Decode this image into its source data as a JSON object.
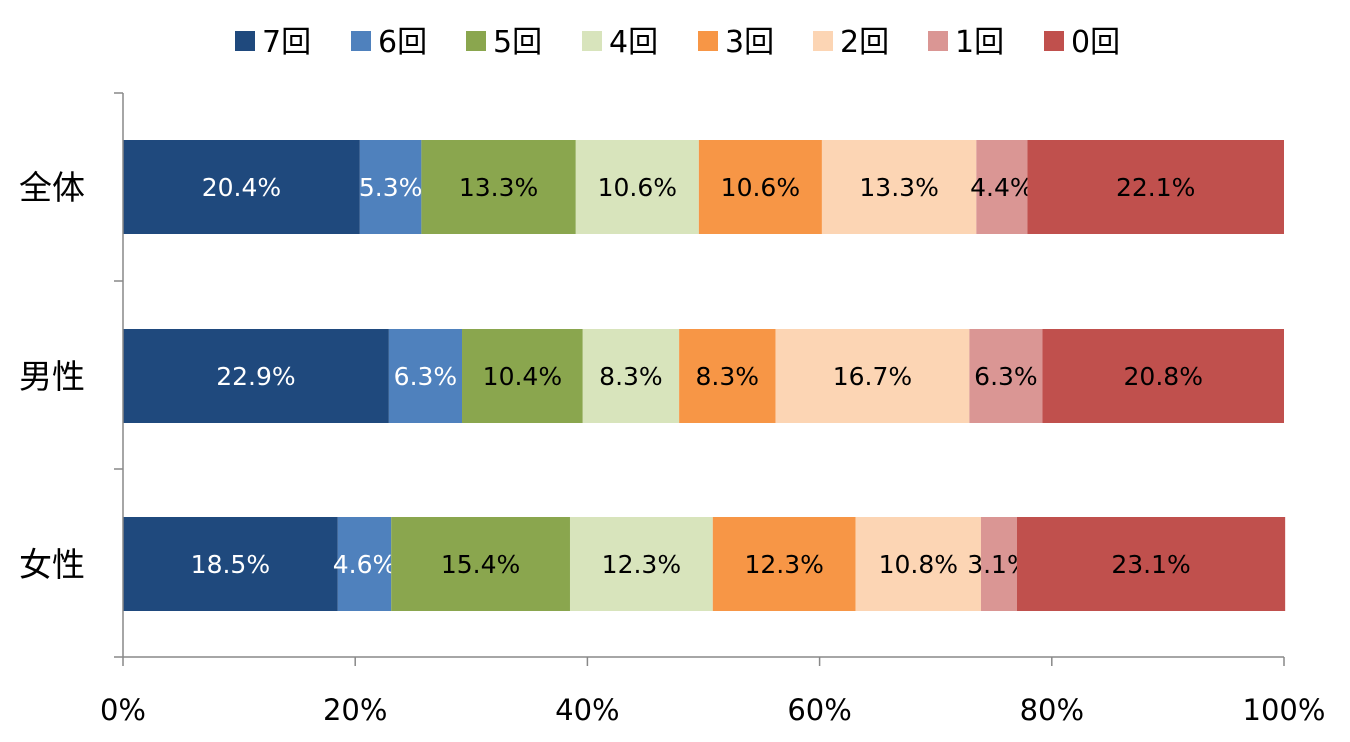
{
  "chart_data": {
    "type": "bar",
    "orientation": "horizontal",
    "stacked": "percent",
    "categories": [
      "全体",
      "男性",
      "女性"
    ],
    "xlim": [
      0,
      100
    ],
    "x_ticks": [
      "0%",
      "20%",
      "40%",
      "60%",
      "80%",
      "100%"
    ],
    "legend_position": "top",
    "grid": false,
    "series": [
      {
        "name": "7回",
        "color": "#1F497D",
        "label_color": "#ffffff",
        "values": [
          20.4,
          22.9,
          18.5
        ],
        "labels": [
          "20.4%",
          "22.9%",
          "18.5%"
        ]
      },
      {
        "name": "6回",
        "color": "#4F81BD",
        "label_color": "#ffffff",
        "values": [
          5.3,
          6.3,
          4.6
        ],
        "labels": [
          "5.3%",
          "6.3%",
          "4.6%"
        ]
      },
      {
        "name": "5回",
        "color": "#8AA64E",
        "label_color": "#000000",
        "values": [
          13.3,
          10.4,
          15.4
        ],
        "labels": [
          "13.3%",
          "10.4%",
          "15.4%"
        ]
      },
      {
        "name": "4回",
        "color": "#D8E4BC",
        "label_color": "#000000",
        "values": [
          10.6,
          8.3,
          12.3
        ],
        "labels": [
          "10.6%",
          "8.3%",
          "12.3%"
        ]
      },
      {
        "name": "3回",
        "color": "#F79646",
        "label_color": "#000000",
        "values": [
          10.6,
          8.3,
          12.3
        ],
        "labels": [
          "10.6%",
          "8.3%",
          "12.3%"
        ]
      },
      {
        "name": "2回",
        "color": "#FCD5B4",
        "label_color": "#000000",
        "values": [
          13.3,
          16.7,
          10.8
        ],
        "labels": [
          "13.3%",
          "16.7%",
          "10.8%"
        ]
      },
      {
        "name": "1回",
        "color": "#DA9694",
        "label_color": "#000000",
        "values": [
          4.4,
          6.3,
          3.1
        ],
        "labels": [
          "4.4%",
          "6.3%",
          "3.1%"
        ]
      },
      {
        "name": "0回",
        "color": "#C0504D",
        "label_color": "#000000",
        "values": [
          22.1,
          20.8,
          23.1
        ],
        "labels": [
          "22.1%",
          "20.8%",
          "23.1%"
        ]
      }
    ]
  }
}
